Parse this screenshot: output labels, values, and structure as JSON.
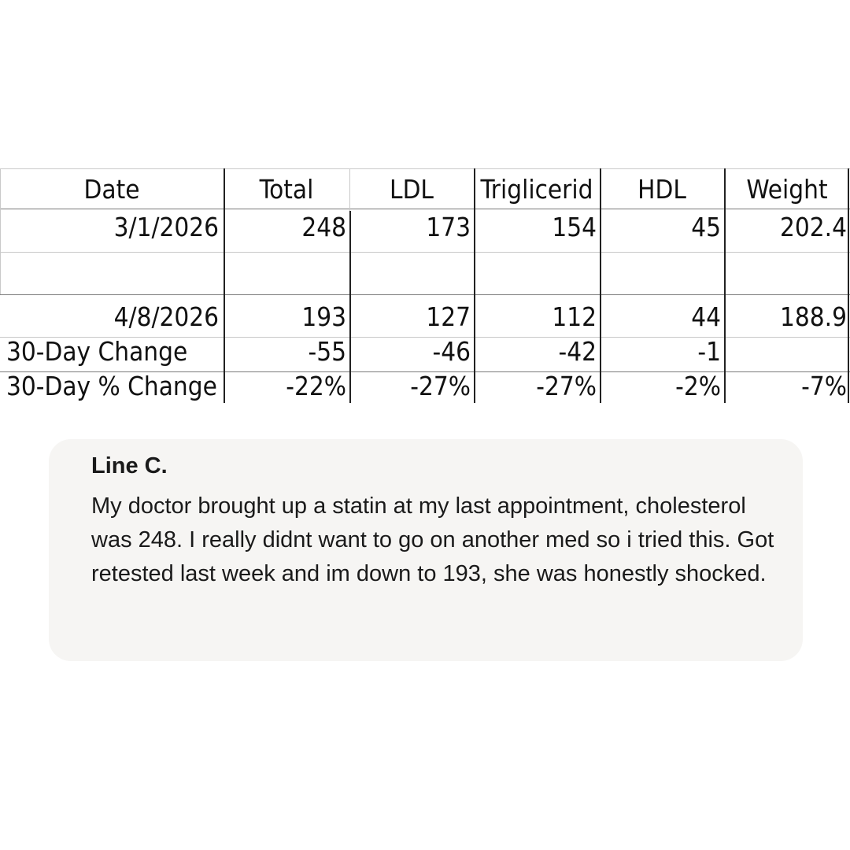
{
  "table": {
    "headers": [
      "Date",
      "Total",
      "LDL",
      "Triglicerid",
      "HDL",
      "Weight"
    ],
    "rows": [
      {
        "label": "3/1/2026",
        "values": [
          "248",
          "173",
          "154",
          "45",
          "202.4"
        ]
      },
      {
        "label": "",
        "values": [
          "",
          "",
          "",
          "",
          ""
        ]
      },
      {
        "label": "4/8/2026",
        "values": [
          "193",
          "127",
          "112",
          "44",
          "188.9"
        ]
      },
      {
        "label": "30-Day Change",
        "values": [
          "-55",
          "-46",
          "-42",
          "-1",
          ""
        ]
      },
      {
        "label": "30-Day % Change",
        "values": [
          "-22%",
          "-27%",
          "-27%",
          "-2%",
          "-7%"
        ]
      }
    ]
  },
  "comment": {
    "author": "Line C.",
    "text": "My doctor brought up a statin at my last appointment, cholesterol was 248. I really didnt want to go on another med so i tried this. Got retested last week and im down to 193, she was honestly shocked."
  }
}
